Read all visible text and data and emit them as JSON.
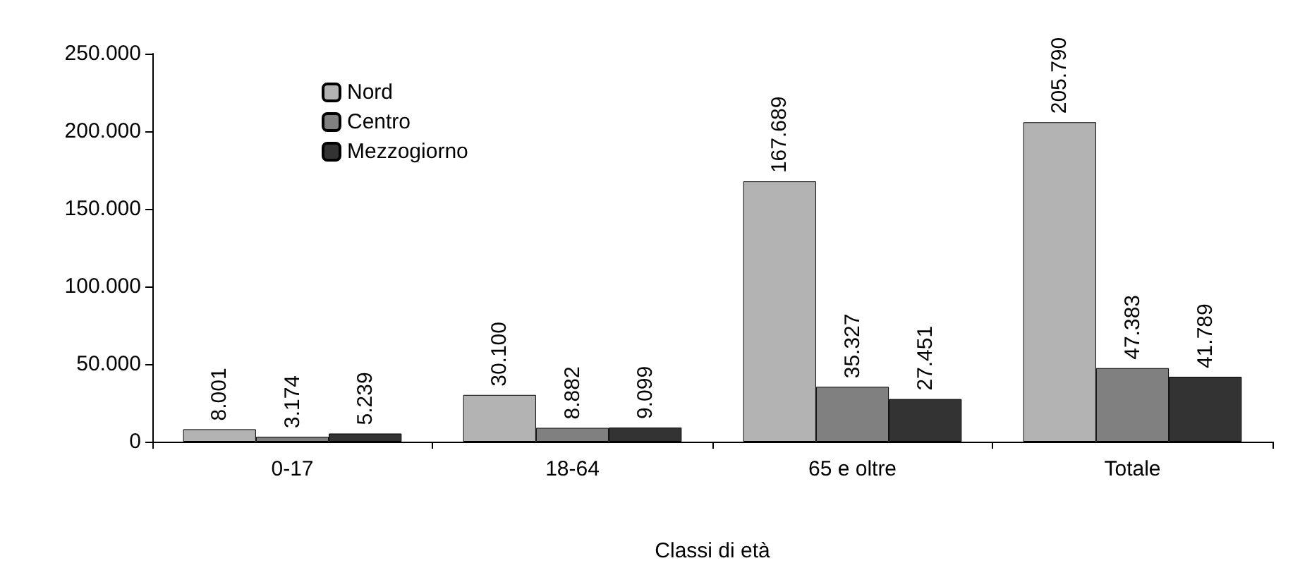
{
  "chart_data": {
    "type": "bar",
    "xlabel": "Classi di età",
    "categories": [
      "0-17",
      "18-64",
      "65 e oltre",
      "Totale"
    ],
    "series": [
      {
        "name": "Nord",
        "color": "#b3b3b3",
        "values": [
          8001,
          30100,
          167689,
          205790
        ],
        "value_labels": [
          "8.001",
          "30.100",
          "167.689",
          "205.790"
        ]
      },
      {
        "name": "Centro",
        "color": "#808080",
        "values": [
          3174,
          8882,
          35327,
          47383
        ],
        "value_labels": [
          "3.174",
          "8.882",
          "35.327",
          "47.383"
        ]
      },
      {
        "name": "Mezzogiorno",
        "color": "#333333",
        "values": [
          5239,
          9099,
          27451,
          41789
        ],
        "value_labels": [
          "5.239",
          "9.099",
          "27.451",
          "41.789"
        ]
      }
    ],
    "ylim": [
      0,
      250000
    ],
    "yticks": [
      {
        "value": 0,
        "label": "0"
      },
      {
        "value": 50000,
        "label": "50.000"
      },
      {
        "value": 100000,
        "label": "100.000"
      },
      {
        "value": 150000,
        "label": "150.000"
      },
      {
        "value": 200000,
        "label": "200.000"
      },
      {
        "value": 250000,
        "label": "250.000"
      }
    ],
    "grid": false,
    "legend": "top left"
  }
}
